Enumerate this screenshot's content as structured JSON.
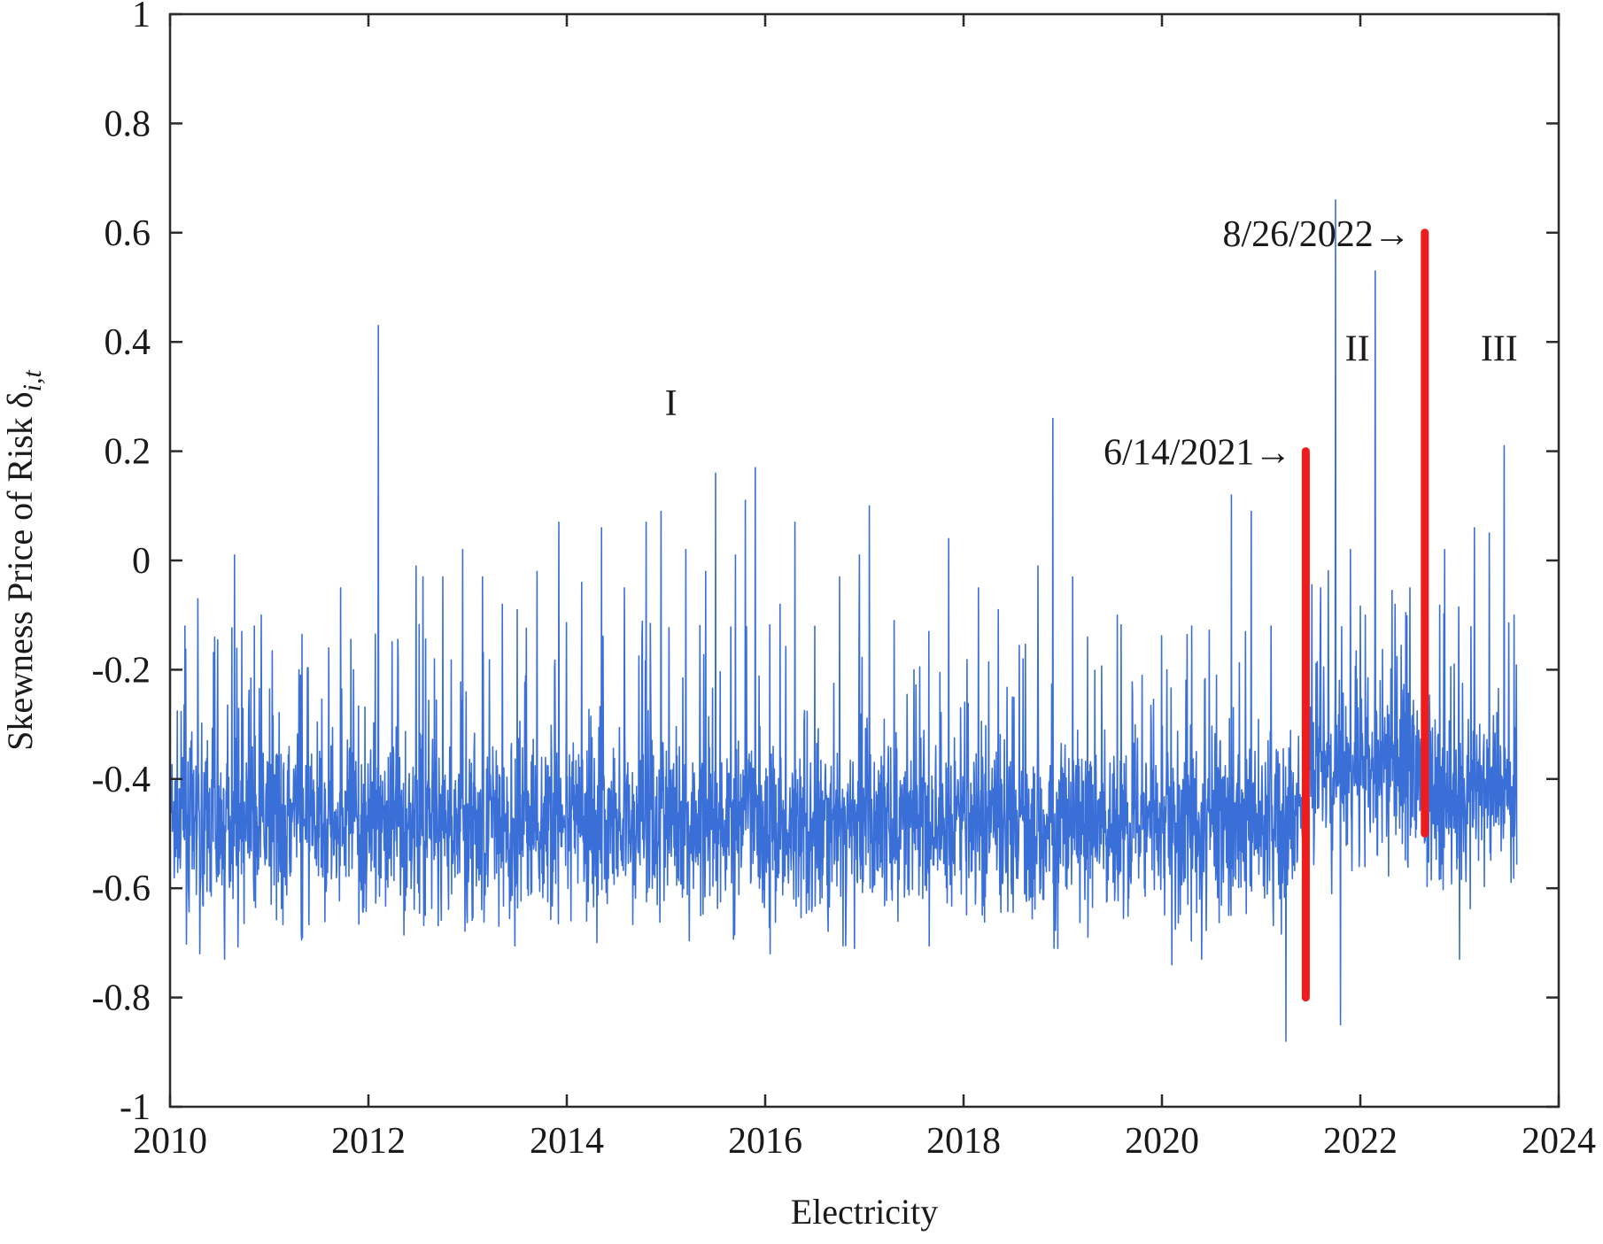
{
  "chart_data": {
    "type": "line",
    "title": "",
    "xlabel": "Electricity",
    "ylabel": {
      "main": "Skewness Price of Risk δ",
      "subscript": "i,t"
    },
    "xlim": [
      2010,
      2024
    ],
    "ylim": [
      -1,
      1
    ],
    "x_ticks": [
      2010,
      2012,
      2014,
      2016,
      2018,
      2020,
      2022,
      2024
    ],
    "x_tick_labels": [
      "2010",
      "2012",
      "2014",
      "2016",
      "2018",
      "2020",
      "2022",
      "2024"
    ],
    "y_ticks": [
      1,
      0.8,
      0.6,
      0.4,
      0.2,
      0,
      -0.2,
      -0.4,
      -0.6,
      -0.8,
      -1
    ],
    "y_tick_labels": [
      "1",
      "0.8",
      "0.6",
      "0.4",
      "0.2",
      "0",
      "-0.2",
      "-0.4",
      "-0.6",
      "-0.8",
      "-1"
    ],
    "grid": false,
    "series_color": "#3a6fd8",
    "series": [
      {
        "name": "",
        "color": "#3a6fd8",
        "x_start": "2010-01-01",
        "x_end": "2023-07-31",
        "baseline_by_regime": [
          {
            "from": 2010.0,
            "to": 2021.45,
            "mean": -0.48
          },
          {
            "from": 2021.45,
            "to": 2022.65,
            "mean": -0.38
          },
          {
            "from": 2022.65,
            "to": 2023.6,
            "mean": -0.42
          }
        ],
        "spikes": [
          {
            "x": 2010.15,
            "y": -0.12
          },
          {
            "x": 2010.28,
            "y": -0.07
          },
          {
            "x": 2010.55,
            "y": -0.17
          },
          {
            "x": 2010.65,
            "y": 0.01
          },
          {
            "x": 2010.85,
            "y": -0.12
          },
          {
            "x": 2010.92,
            "y": -0.1
          },
          {
            "x": 2011.3,
            "y": -0.2
          },
          {
            "x": 2011.6,
            "y": -0.16
          },
          {
            "x": 2011.72,
            "y": -0.05
          },
          {
            "x": 2011.85,
            "y": -0.2
          },
          {
            "x": 2012.1,
            "y": 0.43
          },
          {
            "x": 2012.3,
            "y": -0.18
          },
          {
            "x": 2012.48,
            "y": -0.01
          },
          {
            "x": 2012.55,
            "y": -0.03
          },
          {
            "x": 2012.75,
            "y": -0.03
          },
          {
            "x": 2012.95,
            "y": 0.02
          },
          {
            "x": 2013.15,
            "y": -0.03
          },
          {
            "x": 2013.35,
            "y": -0.08
          },
          {
            "x": 2013.5,
            "y": -0.09
          },
          {
            "x": 2013.7,
            "y": -0.02
          },
          {
            "x": 2013.92,
            "y": 0.07
          },
          {
            "x": 2014.15,
            "y": -0.04
          },
          {
            "x": 2014.35,
            "y": 0.06
          },
          {
            "x": 2014.58,
            "y": -0.05
          },
          {
            "x": 2014.8,
            "y": 0.07
          },
          {
            "x": 2014.95,
            "y": 0.09
          },
          {
            "x": 2015.2,
            "y": 0.02
          },
          {
            "x": 2015.4,
            "y": -0.02
          },
          {
            "x": 2015.5,
            "y": 0.16
          },
          {
            "x": 2015.7,
            "y": 0.01
          },
          {
            "x": 2015.8,
            "y": 0.11
          },
          {
            "x": 2015.9,
            "y": 0.17
          },
          {
            "x": 2016.15,
            "y": -0.08
          },
          {
            "x": 2016.3,
            "y": 0.07
          },
          {
            "x": 2016.5,
            "y": -0.12
          },
          {
            "x": 2016.75,
            "y": -0.03
          },
          {
            "x": 2016.95,
            "y": 0.01
          },
          {
            "x": 2017.05,
            "y": 0.1
          },
          {
            "x": 2017.3,
            "y": -0.11
          },
          {
            "x": 2017.5,
            "y": -0.2
          },
          {
            "x": 2017.65,
            "y": -0.13
          },
          {
            "x": 2017.85,
            "y": 0.04
          },
          {
            "x": 2018.15,
            "y": -0.05
          },
          {
            "x": 2018.35,
            "y": -0.09
          },
          {
            "x": 2018.6,
            "y": -0.18
          },
          {
            "x": 2018.75,
            "y": -0.01
          },
          {
            "x": 2018.9,
            "y": 0.26
          },
          {
            "x": 2019.1,
            "y": -0.03
          },
          {
            "x": 2019.25,
            "y": -0.14
          },
          {
            "x": 2019.55,
            "y": -0.1
          },
          {
            "x": 2019.8,
            "y": -0.21
          },
          {
            "x": 2020.05,
            "y": -0.2
          },
          {
            "x": 2020.3,
            "y": -0.12
          },
          {
            "x": 2020.55,
            "y": -0.21
          },
          {
            "x": 2020.7,
            "y": 0.12
          },
          {
            "x": 2020.9,
            "y": 0.09
          },
          {
            "x": 2021.1,
            "y": -0.12
          },
          {
            "x": 2021.25,
            "y": -0.09
          },
          {
            "x": 2021.6,
            "y": -0.05
          },
          {
            "x": 2021.75,
            "y": 0.66
          },
          {
            "x": 2021.9,
            "y": 0.02
          },
          {
            "x": 2022.05,
            "y": -0.1
          },
          {
            "x": 2022.15,
            "y": 0.53
          },
          {
            "x": 2022.35,
            "y": -0.08
          },
          {
            "x": 2022.5,
            "y": -0.05
          },
          {
            "x": 2022.85,
            "y": 0.02
          },
          {
            "x": 2023.0,
            "y": -0.03
          },
          {
            "x": 2023.15,
            "y": 0.06
          },
          {
            "x": 2023.3,
            "y": 0.05
          },
          {
            "x": 2023.45,
            "y": 0.21
          },
          {
            "x": 2023.55,
            "y": -0.1
          }
        ],
        "dips": [
          {
            "x": 2010.3,
            "y": -0.72
          },
          {
            "x": 2010.55,
            "y": -0.73
          },
          {
            "x": 2014.2,
            "y": -0.66
          },
          {
            "x": 2016.05,
            "y": -0.72
          },
          {
            "x": 2016.9,
            "y": -0.71
          },
          {
            "x": 2018.95,
            "y": -0.71
          },
          {
            "x": 2020.1,
            "y": -0.74
          },
          {
            "x": 2020.4,
            "y": -0.73
          },
          {
            "x": 2021.25,
            "y": -0.88
          },
          {
            "x": 2021.8,
            "y": -0.85
          },
          {
            "x": 2023.0,
            "y": -0.73
          }
        ]
      }
    ],
    "breaks": [
      {
        "x": 2021.45,
        "y_from": -0.8,
        "y_to": 0.2,
        "label": "6/14/2021",
        "arrow": "→",
        "color": "#ee1c1c"
      },
      {
        "x": 2022.65,
        "y_from": -0.5,
        "y_to": 0.6,
        "label": "8/26/2022",
        "arrow": "→",
        "color": "#ee1c1c"
      }
    ],
    "annotations": [
      {
        "text": "I",
        "x": 2015.05,
        "y": 0.29
      },
      {
        "text": "II",
        "x": 2021.97,
        "y": 0.39
      },
      {
        "text": "III",
        "x": 2023.4,
        "y": 0.39
      }
    ]
  }
}
